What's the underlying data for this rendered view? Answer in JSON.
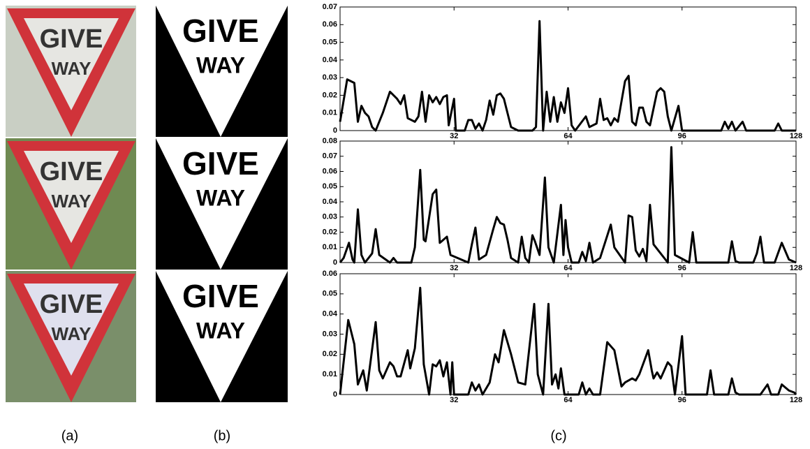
{
  "captions": [
    "(a)",
    "(b)",
    "(c)"
  ],
  "signs": {
    "line1": "GIVE",
    "line2": "WAY"
  },
  "chart_data": [
    {
      "type": "line",
      "xlim": [
        0,
        128
      ],
      "xticks": [
        32,
        64,
        96,
        128
      ],
      "ylim": [
        0,
        0.07
      ],
      "yticks": [
        0,
        0.01,
        0.02,
        0.03,
        0.04,
        0.05,
        0.06,
        0.07
      ],
      "x": [
        0,
        2,
        4,
        5,
        6,
        7,
        8,
        9,
        10,
        12,
        14,
        16,
        17,
        18,
        19,
        20,
        21,
        22,
        23,
        24,
        25,
        26,
        27,
        28,
        29,
        30,
        30.5,
        31,
        32,
        32.5,
        35,
        36,
        37,
        38,
        39,
        40,
        41,
        42,
        43,
        44,
        45,
        46,
        47,
        48,
        49,
        50,
        54,
        55,
        56,
        57,
        58,
        59,
        60,
        61,
        62,
        63,
        64,
        65,
        66,
        69,
        70,
        72,
        73,
        74,
        75,
        76,
        77,
        78,
        80,
        81,
        82,
        83,
        84,
        85,
        86,
        87,
        89,
        90,
        91,
        92,
        93,
        95,
        96,
        107,
        108,
        109,
        110,
        111,
        113,
        114,
        122,
        123,
        124,
        128
      ],
      "series": [
        {
          "color": "#000000",
          "values": [
            0.005,
            0.029,
            0.027,
            0.005,
            0.014,
            0.01,
            0.008,
            0.002,
            0,
            0.01,
            0.022,
            0.018,
            0.015,
            0.02,
            0.007,
            0.006,
            0.005,
            0.008,
            0.022,
            0.005,
            0.02,
            0.016,
            0.019,
            0.015,
            0.019,
            0.02,
            0.003,
            0.008,
            0.018,
            0,
            0,
            0.006,
            0.006,
            0.001,
            0.004,
            0,
            0.006,
            0.017,
            0.009,
            0.02,
            0.021,
            0.018,
            0.01,
            0.002,
            0.001,
            0,
            0,
            0.002,
            0.062,
            0,
            0.022,
            0.005,
            0.019,
            0.005,
            0.016,
            0.01,
            0.024,
            0.003,
            0,
            0.008,
            0.002,
            0.004,
            0.018,
            0.006,
            0.007,
            0.003,
            0.007,
            0.005,
            0.028,
            0.031,
            0.005,
            0.003,
            0.013,
            0.013,
            0.005,
            0.003,
            0.022,
            0.024,
            0.022,
            0.008,
            0,
            0.014,
            0,
            0,
            0.005,
            0.001,
            0.005,
            0,
            0.005,
            0,
            0,
            0.004,
            0,
            0
          ]
        }
      ]
    },
    {
      "type": "line",
      "xlim": [
        0,
        128
      ],
      "xticks": [
        32,
        64,
        96,
        128
      ],
      "ylim": [
        0,
        0.08
      ],
      "yticks": [
        0,
        0.01,
        0.02,
        0.03,
        0.04,
        0.05,
        0.06,
        0.07,
        0.08
      ],
      "x": [
        0,
        1,
        2.5,
        3.5,
        4,
        5,
        6,
        7,
        9,
        10,
        11,
        14,
        15,
        16,
        20,
        21,
        22.5,
        23.5,
        24,
        26,
        27,
        28,
        30,
        31,
        36,
        37,
        38,
        39,
        41,
        43,
        44,
        45,
        46,
        47,
        48,
        50,
        51,
        52,
        53,
        54,
        54.7,
        56,
        57.5,
        58.5,
        60,
        62,
        62.7,
        63.3,
        64,
        65,
        67,
        68,
        69,
        70,
        71,
        73,
        76,
        77,
        80,
        81,
        82,
        83,
        84,
        85,
        86,
        87,
        88,
        92,
        93,
        94,
        98,
        99,
        100,
        109,
        110,
        111,
        112,
        116,
        117,
        118,
        119,
        122,
        124,
        126,
        128
      ],
      "series": [
        {
          "color": "#000000",
          "values": [
            0,
            0.003,
            0.013,
            0.002,
            0,
            0.035,
            0.005,
            0,
            0.006,
            0.022,
            0.005,
            0,
            0.003,
            0,
            0,
            0.01,
            0.061,
            0.015,
            0.014,
            0.045,
            0.048,
            0.013,
            0.017,
            0.005,
            0,
            0.012,
            0.023,
            0.002,
            0.005,
            0.022,
            0.03,
            0.026,
            0.025,
            0.015,
            0.003,
            0,
            0.017,
            0.003,
            0,
            0.018,
            0.014,
            0.005,
            0.056,
            0.01,
            0,
            0.038,
            0.005,
            0.028,
            0.01,
            0,
            0,
            0.007,
            0.001,
            0.013,
            0,
            0.003,
            0.025,
            0.01,
            0,
            0.031,
            0.03,
            0.008,
            0.004,
            0.009,
            0.001,
            0.038,
            0.012,
            0,
            0.076,
            0.005,
            0,
            0.02,
            0,
            0,
            0.014,
            0.001,
            0,
            0,
            0.006,
            0.017,
            0,
            0,
            0.013,
            0.002,
            0
          ]
        }
      ]
    },
    {
      "type": "line",
      "xlim": [
        0,
        128
      ],
      "xticks": [
        32,
        64,
        96,
        128
      ],
      "ylim": [
        0,
        0.06
      ],
      "yticks": [
        0,
        0.01,
        0.02,
        0.03,
        0.04,
        0.05,
        0.06
      ],
      "x": [
        0,
        2.3,
        4,
        5,
        6.5,
        7.5,
        10,
        11,
        12,
        14,
        15,
        16,
        17,
        19,
        19.7,
        21,
        22.5,
        23.5,
        25,
        26,
        27,
        28,
        29,
        30,
        31,
        31.5,
        32,
        36,
        37,
        38,
        39,
        40,
        42,
        43.5,
        44.5,
        46,
        48,
        50,
        52,
        54.5,
        55.5,
        57,
        58.5,
        59.5,
        60.5,
        61.3,
        62,
        63,
        67,
        68,
        69,
        70,
        71,
        73,
        75,
        77,
        79,
        80,
        82,
        83,
        84,
        86.5,
        87.5,
        88,
        89,
        90,
        92,
        93,
        94,
        96,
        97,
        103,
        104,
        105,
        109,
        110,
        111,
        112,
        118,
        120,
        121,
        123,
        124,
        126,
        127.5,
        128
      ],
      "series": [
        {
          "color": "#000000",
          "values": [
            0,
            0.037,
            0.025,
            0.005,
            0.012,
            0.002,
            0.036,
            0.012,
            0.008,
            0.016,
            0.014,
            0.009,
            0.009,
            0.022,
            0.013,
            0.023,
            0.053,
            0.015,
            0,
            0.015,
            0.014,
            0.017,
            0.009,
            0.016,
            0,
            0.016,
            0,
            0,
            0.006,
            0.002,
            0.005,
            0,
            0.006,
            0.02,
            0.016,
            0.032,
            0.02,
            0.006,
            0.005,
            0.045,
            0.01,
            0,
            0.045,
            0.005,
            0.01,
            0.003,
            0.013,
            0,
            0,
            0.006,
            0,
            0.003,
            0,
            0,
            0.026,
            0.022,
            0.004,
            0.006,
            0.008,
            0.007,
            0.01,
            0.022,
            0.012,
            0.008,
            0.011,
            0.008,
            0.016,
            0.014,
            0,
            0.029,
            0,
            0,
            0.012,
            0,
            0,
            0.008,
            0.001,
            0,
            0,
            0.005,
            0,
            0,
            0.005,
            0.002,
            0.001,
            0
          ]
        }
      ]
    }
  ]
}
